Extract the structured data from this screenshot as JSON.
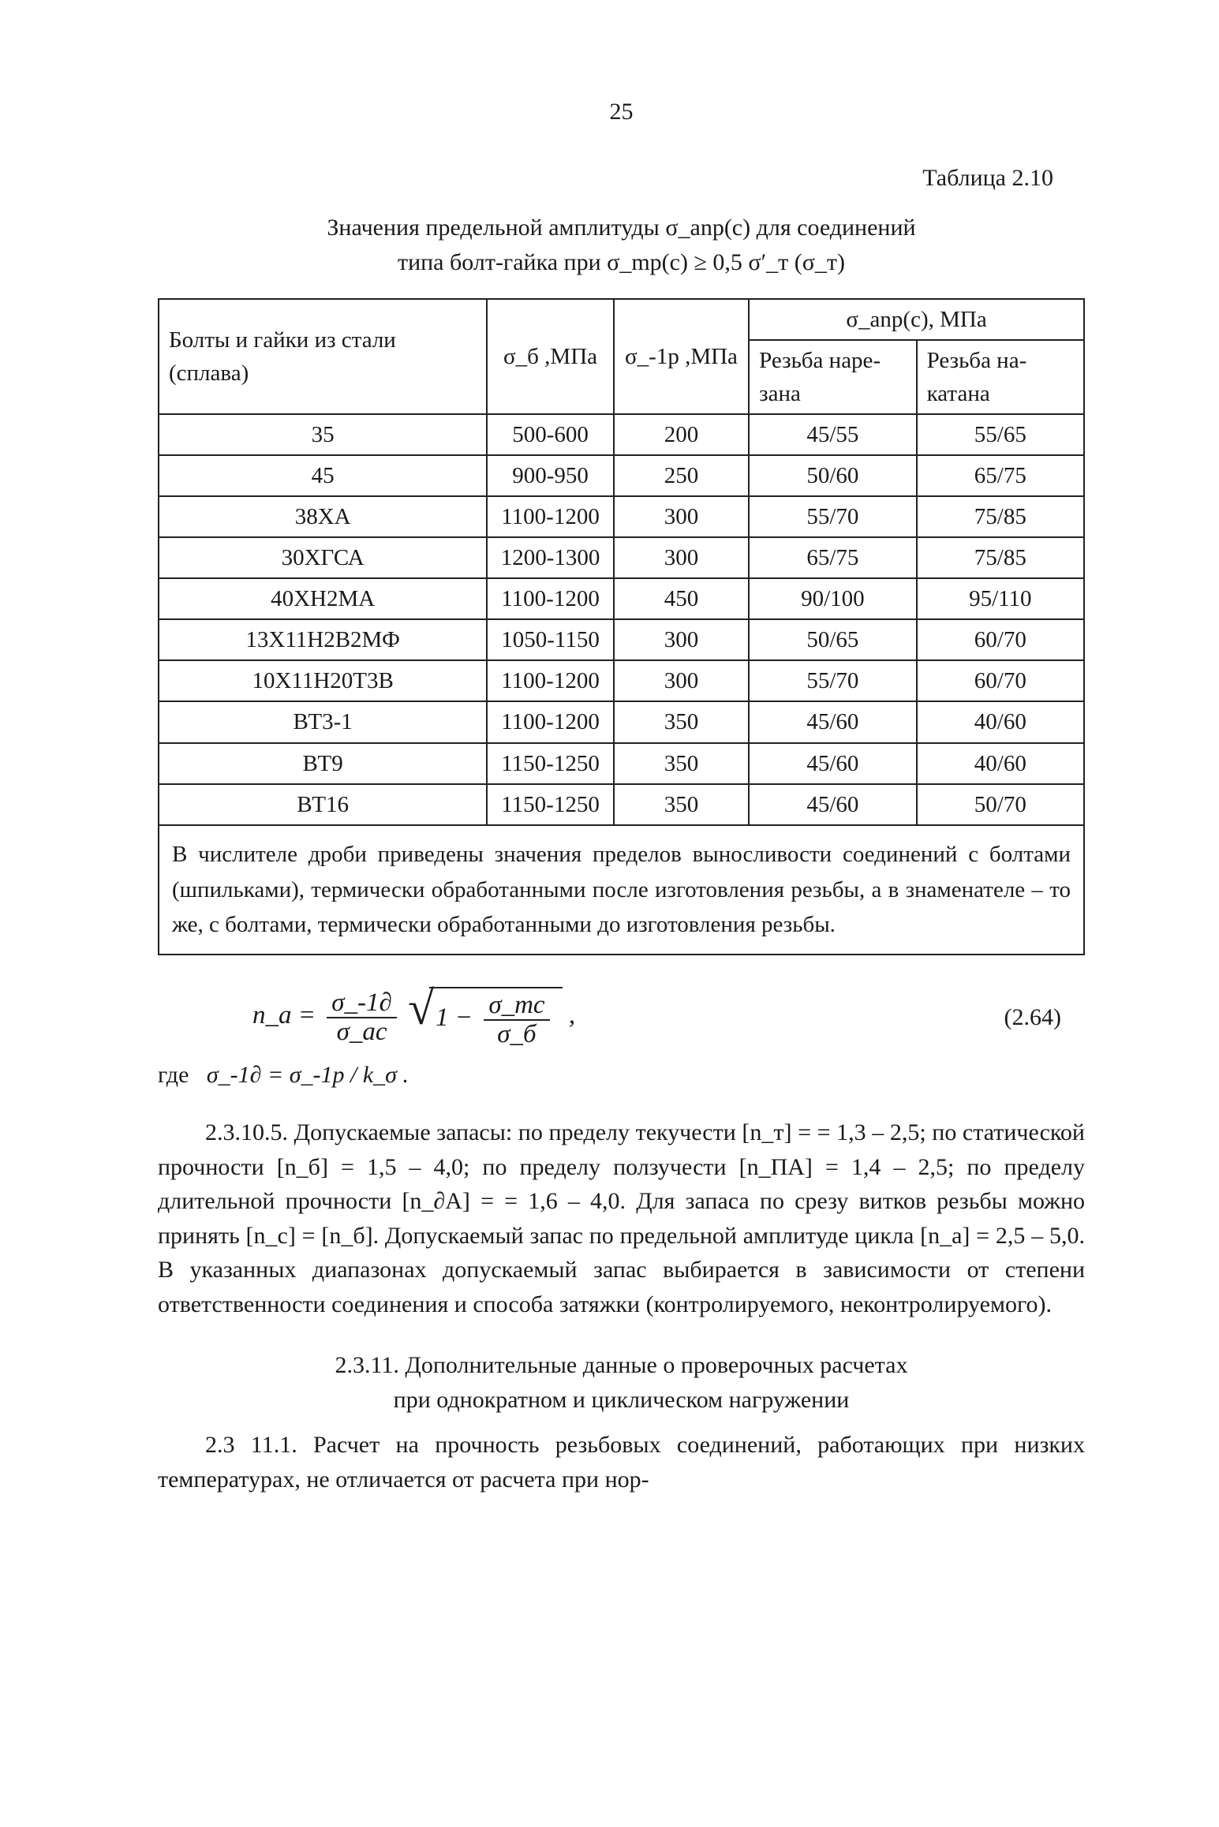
{
  "page_number": "25",
  "caption_right": "Таблица 2.10",
  "title_line1": "Значения предельной амплитуды σ_anp(c) для соединений",
  "title_line2": "типа болт-гайка при σ_mp(c) ≥ 0,5 σ′_т (σ_т)",
  "col_alloy": "Болты и гайки из стали (сплава)",
  "col_sigma_b": "σ_б ,МПа",
  "col_sigma_1p": "σ_-1p ,МПа",
  "col_sigma_anp": "σ_anp(c), МПа",
  "sub_cut": "Резьба наре­зана",
  "sub_rolled": "Резьба на­катана",
  "rows": [
    {
      "a": "35",
      "b": "500-600",
      "c": "200",
      "d": "45/55",
      "e": "55/65"
    },
    {
      "a": "45",
      "b": "900-950",
      "c": "250",
      "d": "50/60",
      "e": "65/75"
    },
    {
      "a": "38ХА",
      "b": "1100-1200",
      "c": "300",
      "d": "55/70",
      "e": "75/85"
    },
    {
      "a": "30ХГСА",
      "b": "1200-1300",
      "c": "300",
      "d": "65/75",
      "e": "75/85"
    },
    {
      "a": "40ХН2МА",
      "b": "1100-1200",
      "c": "450",
      "d": "90/100",
      "e": "95/110"
    },
    {
      "a": "13Х11Н2В2МФ",
      "b": "1050-1150",
      "c": "300",
      "d": "50/65",
      "e": "60/70"
    },
    {
      "a": "10Х11Н20Т3В",
      "b": "1100-1200",
      "c": "300",
      "d": "55/70",
      "e": "60/70"
    },
    {
      "a": "ВТ3-1",
      "b": "1100-1200",
      "c": "350",
      "d": "45/60",
      "e": "40/60"
    },
    {
      "a": "ВТ9",
      "b": "1150-1250",
      "c": "350",
      "d": "45/60",
      "e": "40/60"
    },
    {
      "a": "ВТ16",
      "b": "1150-1250",
      "c": "350",
      "d": "45/60",
      "e": "50/70"
    }
  ],
  "footnote": "В числителе дроби приведены значения пределов выносливости сое­динений с болтами (шпильками), термически обработанными после из­готовления резьбы, а в знаменателе – то же, с болтами, термически обработанными до изготовления резьбы.",
  "eq_lhs": "n_a =",
  "eq_frac_num": "σ_-1∂",
  "eq_frac_den": "σ_ac",
  "eq_rad_one": "1 −",
  "eq_rad_frac_num": "σ_mc",
  "eq_rad_frac_den": "σ_б",
  "eq_trail": ",",
  "eq_number": "(2.64)",
  "where_label": "где",
  "where_body": "σ_-1∂ = σ_-1p / k_σ .",
  "para_23105": "2.3.10.5. Допускаемые запасы: по пределу текучести [n_т] = = 1,3 – 2,5; по статической прочности [n_б] = 1,5 – 4,0; по пределу ползучести [n_ПA] = 1,4 – 2,5; по пределу длительной прочности [n_∂A] = = 1,6 – 4,0. Для запаса по срезу витков резьбы можно принять [n_с] = [n_б]. Допускаемый запас по предельной амплитуде цикла [n_a] = 2,5 – 5,0. В указанных диапазонах допускаемый запас выбира­ется в зависимости от степени ответственности соединения и спосо­ба затяжки (контролируемого, неконтролируемого).",
  "sec_line1": "2.3.11. Дополнительные данные о проверочных расчетах",
  "sec_line2": "при однократном и циклическом нагружении",
  "para_23111": "2.3 11.1. Расчет на прочность резьбовых соединений, работаю­щих при низких температурах, не отличается от     расчета при нор-"
}
